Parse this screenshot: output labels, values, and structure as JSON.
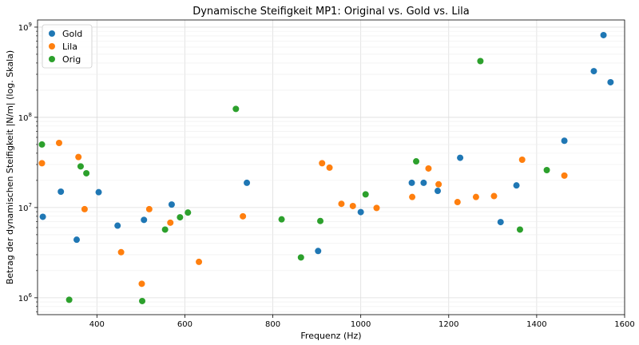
{
  "chart_data": {
    "type": "scatter",
    "title": "Dynamische Steifigkeit MP1: Original vs. Gold vs. Lila",
    "xlabel": "Frequenz (Hz)",
    "ylabel": "Betrag der dynamischen Steifigkeit |N/m| (log. Skala)",
    "xlim": [
      265,
      1600
    ],
    "ylim": [
      650000,
      1200000000
    ],
    "yscale": "log",
    "grid": true,
    "legend_position": "top-left",
    "x_ticks": [
      "400",
      "600",
      "800",
      "1000",
      "1200",
      "1400",
      "1600"
    ],
    "y_ticks": [
      {
        "base": "10",
        "exp": "6"
      },
      {
        "base": "10",
        "exp": "7"
      },
      {
        "base": "10",
        "exp": "8"
      },
      {
        "base": "10",
        "exp": "9"
      }
    ],
    "series": [
      {
        "name": "Gold",
        "color": "#1f77b4",
        "points": [
          [
            277,
            7900000
          ],
          [
            318,
            15000000
          ],
          [
            354,
            4400000
          ],
          [
            404,
            14800000
          ],
          [
            447,
            6300000
          ],
          [
            507,
            7300000
          ],
          [
            570,
            10800000
          ],
          [
            741,
            18800000
          ],
          [
            903,
            3300000
          ],
          [
            1000,
            8900000
          ],
          [
            1116,
            18800000
          ],
          [
            1143,
            18800000
          ],
          [
            1175,
            15300000
          ],
          [
            1226,
            35600000
          ],
          [
            1318,
            6900000
          ],
          [
            1354,
            17600000
          ],
          [
            1463,
            55000000
          ],
          [
            1530,
            325000000
          ],
          [
            1552,
            815000000
          ],
          [
            1568,
            245000000
          ]
        ]
      },
      {
        "name": "Lila",
        "color": "#ff7f0e",
        "points": [
          [
            275,
            31000000
          ],
          [
            314,
            52000000
          ],
          [
            358,
            36300000
          ],
          [
            372,
            9600000
          ],
          [
            455,
            3200000
          ],
          [
            502,
            1430000
          ],
          [
            519,
            9600000
          ],
          [
            567,
            6800000
          ],
          [
            632,
            2500000
          ],
          [
            732,
            8000000
          ],
          [
            912,
            31000000
          ],
          [
            929,
            27700000
          ],
          [
            956,
            11000000
          ],
          [
            982,
            10400000
          ],
          [
            1036,
            9900000
          ],
          [
            1117,
            13100000
          ],
          [
            1154,
            27100000
          ],
          [
            1177,
            18100000
          ],
          [
            1220,
            11500000
          ],
          [
            1262,
            13100000
          ],
          [
            1303,
            13400000
          ],
          [
            1367,
            33900000
          ],
          [
            1463,
            22600000
          ]
        ]
      },
      {
        "name": "Orig",
        "color": "#2ca02c",
        "points": [
          [
            275,
            50000000
          ],
          [
            337,
            950000
          ],
          [
            363,
            28600000
          ],
          [
            376,
            24000000
          ],
          [
            503,
            920000
          ],
          [
            555,
            5700000
          ],
          [
            589,
            7800000
          ],
          [
            607,
            8800000
          ],
          [
            716,
            124000000
          ],
          [
            820,
            7400000
          ],
          [
            864,
            2800000
          ],
          [
            908,
            7100000
          ],
          [
            1011,
            14000000
          ],
          [
            1126,
            32500000
          ],
          [
            1272,
            420000000
          ],
          [
            1362,
            5700000
          ],
          [
            1423,
            26000000
          ]
        ]
      }
    ]
  }
}
